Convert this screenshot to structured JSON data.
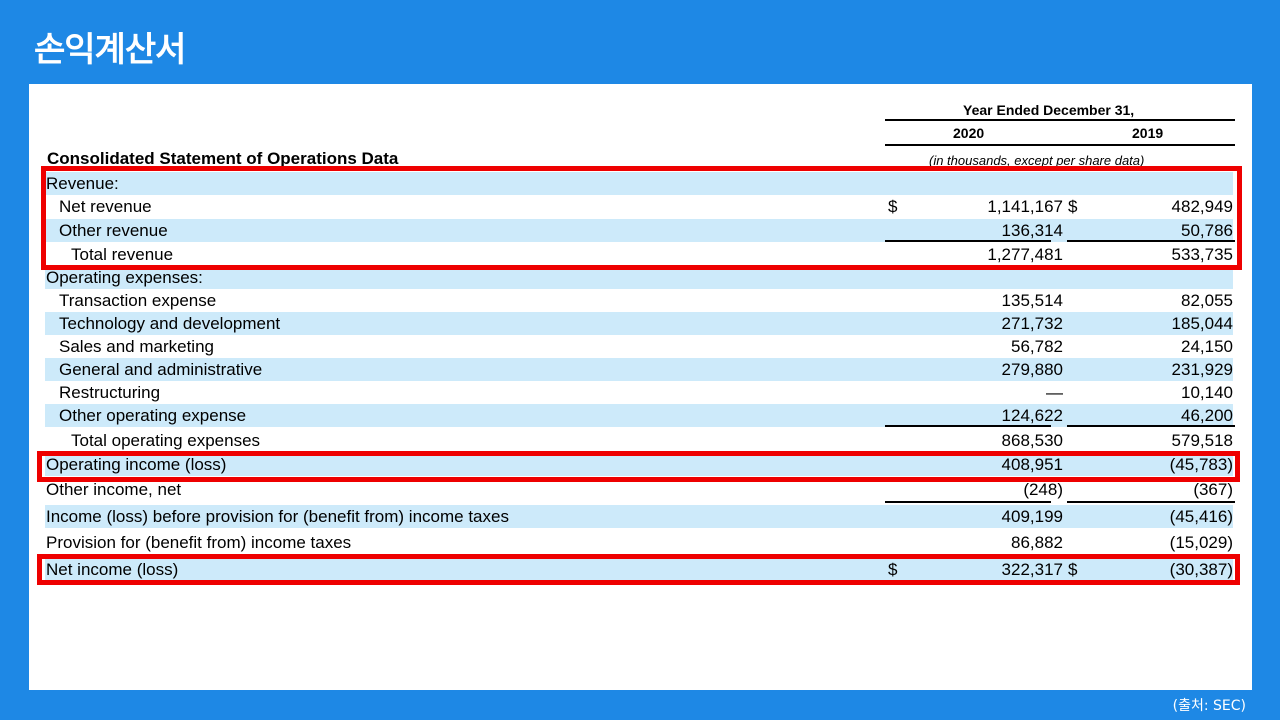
{
  "slide_title": "손익계산서",
  "source_note": "(출처: SEC)",
  "header": {
    "period": "Year Ended December 31,",
    "years": [
      "2020",
      "2019"
    ],
    "statement_title": "Consolidated Statement of Operations Data",
    "units": "(in thousands, except per share data)"
  },
  "rows": [
    {
      "label": "Revenue:",
      "v2020": "",
      "v2019": "",
      "cur": false
    },
    {
      "label": "Net revenue",
      "v2020": "1,141,167",
      "v2019": "482,949",
      "cur": true
    },
    {
      "label": "Other revenue",
      "v2020": "136,314",
      "v2019": "50,786",
      "cur": false
    },
    {
      "label": "Total revenue",
      "v2020": "1,277,481",
      "v2019": "533,735",
      "cur": false
    },
    {
      "label": "Operating expenses:",
      "v2020": "",
      "v2019": "",
      "cur": false
    },
    {
      "label": "Transaction expense",
      "v2020": "135,514",
      "v2019": "82,055",
      "cur": false
    },
    {
      "label": "Technology and development",
      "v2020": "271,732",
      "v2019": "185,044",
      "cur": false
    },
    {
      "label": "Sales and marketing",
      "v2020": "56,782",
      "v2019": "24,150",
      "cur": false
    },
    {
      "label": "General and administrative",
      "v2020": "279,880",
      "v2019": "231,929",
      "cur": false
    },
    {
      "label": "Restructuring",
      "v2020": "—",
      "v2019": "10,140",
      "cur": false
    },
    {
      "label": "Other operating expense",
      "v2020": "124,622",
      "v2019": "46,200",
      "cur": false
    },
    {
      "label": "Total operating expenses",
      "v2020": "868,530",
      "v2019": "579,518",
      "cur": false
    },
    {
      "label": "Operating income (loss)",
      "v2020": "408,951",
      "v2019": "(45,783)",
      "cur": false
    },
    {
      "label": "Other income, net",
      "v2020": "(248)",
      "v2019": "(367)",
      "cur": false
    },
    {
      "label": "Income (loss) before provision for (benefit from) income taxes",
      "v2020": "409,199",
      "v2019": "(45,416)",
      "cur": false
    },
    {
      "label": "Provision for (benefit from) income taxes",
      "v2020": "86,882",
      "v2019": "(15,029)",
      "cur": false
    },
    {
      "label": "Net income (loss)",
      "v2020": "322,317",
      "v2019": "(30,387)",
      "cur": true
    }
  ],
  "currency_symbol": "$",
  "colors": {
    "background": "#1e88e5",
    "row_shade": "#cdeafa",
    "highlight": "#ee0000"
  }
}
